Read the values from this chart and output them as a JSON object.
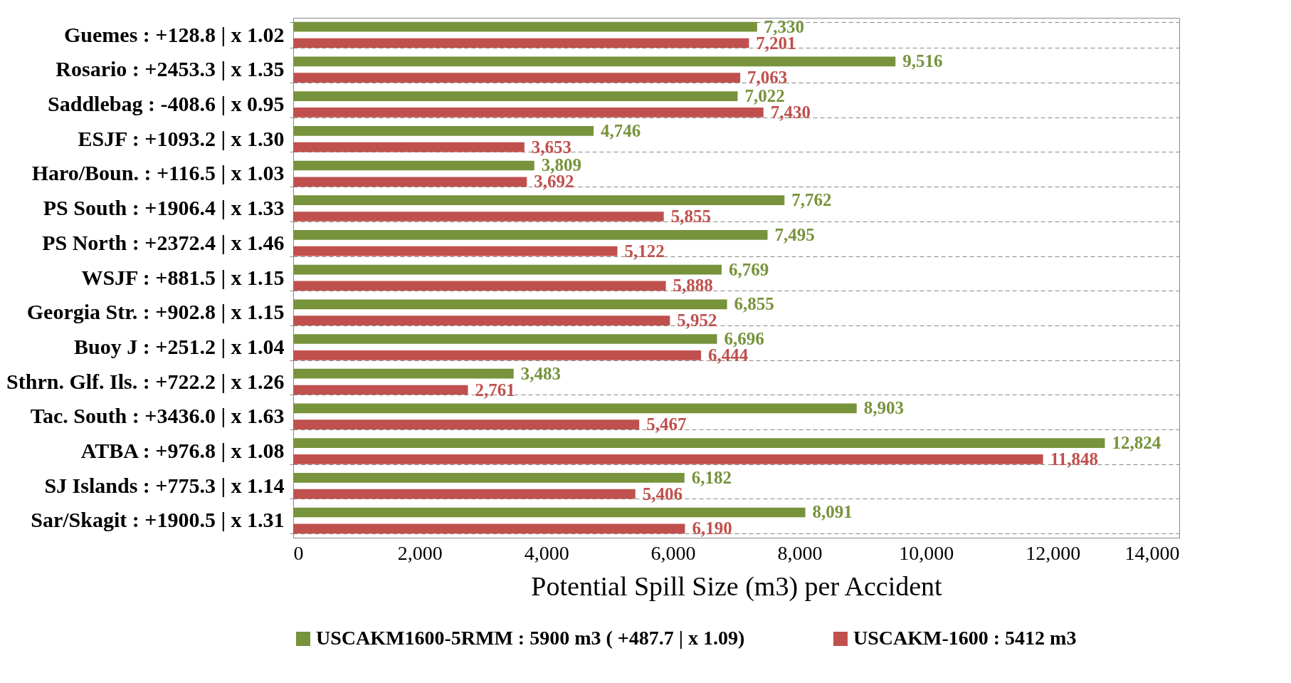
{
  "chart_data": {
    "type": "bar",
    "orientation": "horizontal",
    "xlabel": "Potential Spill Size (m3) per Accident",
    "categories": [
      "Guemes : +128.8 | x 1.02",
      "Rosario : +2453.3 | x 1.35",
      "Saddlebag : -408.6 | x 0.95",
      "ESJF : +1093.2 | x 1.30",
      "Haro/Boun. : +116.5 | x 1.03",
      "PS South : +1906.4 | x 1.33",
      "PS North : +2372.4 | x 1.46",
      "WSJF : +881.5 | x 1.15",
      "Georgia Str. : +902.8 | x 1.15",
      "Buoy J : +251.2 | x 1.04",
      "Sthrn. Glf. Ils. : +722.2 | x 1.26",
      "Tac. South : +3436.0 | x 1.63",
      "ATBA : +976.8 | x 1.08",
      "SJ Islands : +775.3 | x 1.14",
      "Sar/Skagit : +1900.5 | x 1.31"
    ],
    "series": [
      {
        "name": "USCAKM1600-5RMM : 5900 m3 ( +487.7 | x 1.09)",
        "color": "#77933c",
        "values": [
          7330,
          9516,
          7022,
          4746,
          3809,
          7762,
          7495,
          6769,
          6855,
          6696,
          3483,
          8903,
          12824,
          6182,
          8091
        ]
      },
      {
        "name": "USCAKM-1600 : 5412 m3",
        "color": "#c0504d",
        "values": [
          7201,
          7063,
          7430,
          3653,
          3692,
          5855,
          5122,
          5888,
          5952,
          6444,
          2761,
          5467,
          11848,
          5406,
          6190
        ]
      }
    ],
    "value_labels": [
      [
        "7,330",
        "9,516",
        "7,022",
        "4,746",
        "3,809",
        "7,762",
        "7,495",
        "6,769",
        "6,855",
        "6,696",
        "3,483",
        "8,903",
        "12,824",
        "6,182",
        "8,091"
      ],
      [
        "7,201",
        "7,063",
        "7,430",
        "3,653",
        "3,692",
        "5,855",
        "5,122",
        "5,888",
        "5,952",
        "6,444",
        "2,761",
        "5,467",
        "11,848",
        "5,406",
        "6,190"
      ]
    ],
    "xlim": [
      0,
      14000
    ],
    "xticks": [
      0,
      {
        "value": 2000,
        "label": "2,000"
      },
      {
        "value": 4000,
        "label": "4,000"
      },
      {
        "value": 6000,
        "label": "6,000"
      },
      {
        "value": 8000,
        "label": "8,000"
      },
      {
        "value": 10000,
        "label": "10,000"
      },
      {
        "value": 12000,
        "label": "12,000"
      },
      {
        "value": 14000,
        "label": "14,000"
      }
    ],
    "grid": "y",
    "legend": "bottom"
  }
}
